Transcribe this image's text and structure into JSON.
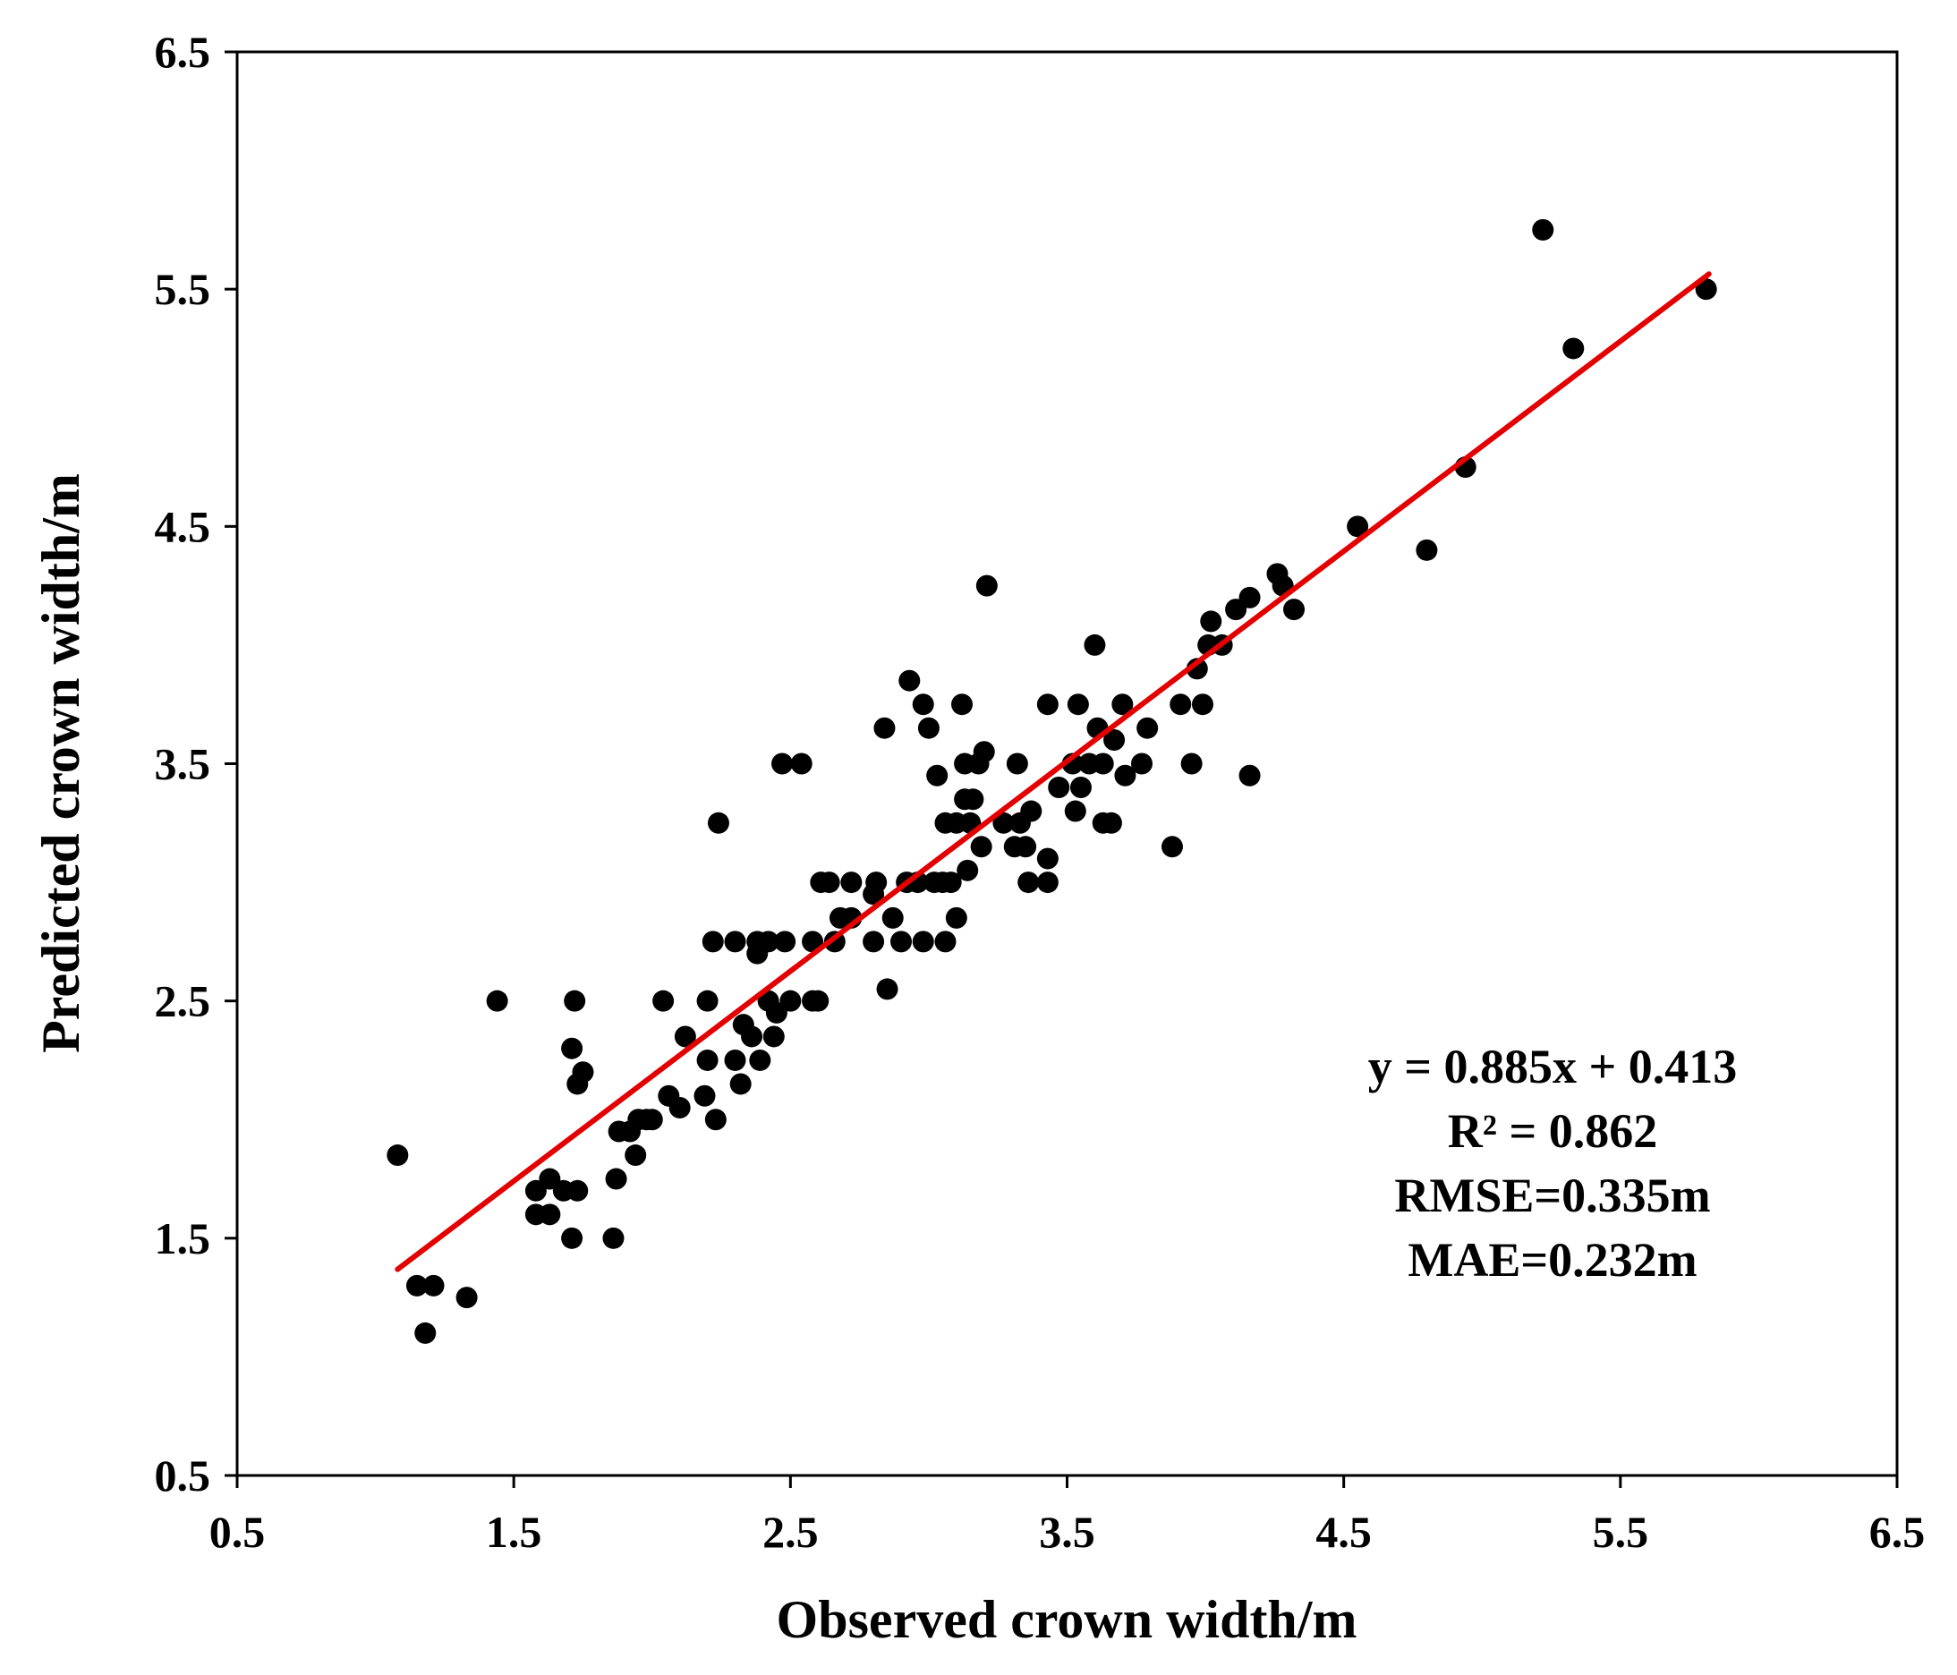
{
  "chart_data": {
    "type": "scatter",
    "xlabel": "Observed crown width/m",
    "ylabel": "Predicted crown width/m",
    "xlim": [
      0.5,
      6.5
    ],
    "ylim": [
      0.5,
      6.5
    ],
    "x_ticks": [
      "0.5",
      "1.5",
      "2.5",
      "3.5",
      "4.5",
      "5.5",
      "6.5"
    ],
    "y_ticks": [
      "0.5",
      "1.5",
      "2.5",
      "3.5",
      "4.5",
      "5.5",
      "6.5"
    ],
    "grid": false,
    "legend": "none",
    "point_color": "#000000",
    "fit_line": {
      "slope": 0.885,
      "intercept": 0.413,
      "x_range": [
        1.08,
        5.82
      ],
      "color": "#e30000"
    },
    "annotations": [
      "y = 0.885x + 0.413",
      "R² = 0.862",
      "RMSE=0.335m",
      "MAE=0.232m"
    ],
    "series": [
      {
        "name": "samples",
        "points": [
          [
            1.08,
            1.85
          ],
          [
            1.15,
            1.3
          ],
          [
            1.21,
            1.3
          ],
          [
            1.18,
            1.1
          ],
          [
            1.33,
            1.25
          ],
          [
            1.44,
            2.5
          ],
          [
            1.58,
            1.6
          ],
          [
            1.58,
            1.7
          ],
          [
            1.63,
            1.75
          ],
          [
            1.63,
            1.6
          ],
          [
            1.68,
            1.7
          ],
          [
            1.71,
            1.5
          ],
          [
            1.71,
            2.3
          ],
          [
            1.72,
            2.5
          ],
          [
            1.73,
            2.15
          ],
          [
            1.73,
            1.7
          ],
          [
            1.75,
            2.2
          ],
          [
            1.86,
            1.5
          ],
          [
            1.87,
            1.75
          ],
          [
            1.88,
            1.95
          ],
          [
            1.92,
            1.95
          ],
          [
            1.94,
            1.85
          ],
          [
            1.95,
            2.0
          ],
          [
            1.98,
            2.0
          ],
          [
            2.0,
            2.0
          ],
          [
            2.04,
            2.5
          ],
          [
            2.06,
            2.1
          ],
          [
            2.1,
            2.05
          ],
          [
            2.12,
            2.35
          ],
          [
            2.19,
            2.1
          ],
          [
            2.2,
            2.5
          ],
          [
            2.2,
            2.25
          ],
          [
            2.22,
            2.75
          ],
          [
            2.23,
            2.0
          ],
          [
            2.24,
            3.25
          ],
          [
            2.3,
            2.75
          ],
          [
            2.3,
            2.25
          ],
          [
            2.32,
            2.15
          ],
          [
            2.33,
            2.4
          ],
          [
            2.36,
            2.35
          ],
          [
            2.38,
            2.7
          ],
          [
            2.38,
            2.75
          ],
          [
            2.39,
            2.25
          ],
          [
            2.42,
            2.75
          ],
          [
            2.42,
            2.5
          ],
          [
            2.44,
            2.35
          ],
          [
            2.45,
            2.45
          ],
          [
            2.47,
            3.5
          ],
          [
            2.48,
            2.75
          ],
          [
            2.5,
            2.5
          ],
          [
            2.54,
            3.5
          ],
          [
            2.58,
            2.75
          ],
          [
            2.58,
            2.5
          ],
          [
            2.6,
            2.5
          ],
          [
            2.61,
            3.0
          ],
          [
            2.64,
            3.0
          ],
          [
            2.66,
            2.75
          ],
          [
            2.68,
            2.85
          ],
          [
            2.72,
            3.0
          ],
          [
            2.72,
            2.85
          ],
          [
            2.8,
            2.75
          ],
          [
            2.8,
            2.95
          ],
          [
            2.81,
            3.0
          ],
          [
            2.84,
            3.65
          ],
          [
            2.85,
            2.55
          ],
          [
            2.87,
            2.85
          ],
          [
            2.9,
            2.75
          ],
          [
            2.92,
            3.0
          ],
          [
            2.93,
            3.85
          ],
          [
            2.96,
            3.0
          ],
          [
            2.98,
            2.75
          ],
          [
            2.98,
            3.75
          ],
          [
            3.0,
            3.65
          ],
          [
            3.02,
            3.0
          ],
          [
            3.03,
            3.45
          ],
          [
            3.05,
            3.0
          ],
          [
            3.06,
            3.25
          ],
          [
            3.06,
            2.75
          ],
          [
            3.08,
            3.0
          ],
          [
            3.1,
            3.25
          ],
          [
            3.1,
            2.85
          ],
          [
            3.12,
            3.75
          ],
          [
            3.13,
            3.5
          ],
          [
            3.13,
            3.35
          ],
          [
            3.14,
            3.05
          ],
          [
            3.15,
            3.25
          ],
          [
            3.16,
            3.35
          ],
          [
            3.18,
            3.5
          ],
          [
            3.19,
            3.15
          ],
          [
            3.2,
            3.55
          ],
          [
            3.21,
            4.25
          ],
          [
            3.27,
            3.25
          ],
          [
            3.31,
            3.15
          ],
          [
            3.32,
            3.5
          ],
          [
            3.33,
            3.25
          ],
          [
            3.35,
            3.15
          ],
          [
            3.36,
            3.0
          ],
          [
            3.37,
            3.3
          ],
          [
            3.43,
            3.75
          ],
          [
            3.43,
            3.1
          ],
          [
            3.43,
            3.0
          ],
          [
            3.47,
            3.4
          ],
          [
            3.52,
            3.5
          ],
          [
            3.53,
            3.3
          ],
          [
            3.54,
            3.75
          ],
          [
            3.55,
            3.4
          ],
          [
            3.58,
            3.5
          ],
          [
            3.6,
            4.0
          ],
          [
            3.61,
            3.65
          ],
          [
            3.63,
            3.5
          ],
          [
            3.63,
            3.25
          ],
          [
            3.66,
            3.25
          ],
          [
            3.67,
            3.6
          ],
          [
            3.7,
            3.75
          ],
          [
            3.71,
            3.45
          ],
          [
            3.77,
            3.5
          ],
          [
            3.79,
            3.65
          ],
          [
            3.88,
            3.15
          ],
          [
            3.91,
            3.75
          ],
          [
            3.95,
            3.5
          ],
          [
            3.97,
            3.9
          ],
          [
            3.99,
            3.75
          ],
          [
            4.01,
            4.0
          ],
          [
            4.02,
            4.1
          ],
          [
            4.06,
            4.0
          ],
          [
            4.11,
            4.15
          ],
          [
            4.16,
            4.2
          ],
          [
            4.16,
            3.45
          ],
          [
            4.26,
            4.3
          ],
          [
            4.28,
            4.25
          ],
          [
            4.32,
            4.15
          ],
          [
            4.55,
            4.5
          ],
          [
            4.8,
            4.4
          ],
          [
            4.94,
            4.75
          ],
          [
            5.22,
            5.75
          ],
          [
            5.33,
            5.25
          ],
          [
            5.81,
            5.5
          ]
        ]
      }
    ]
  }
}
